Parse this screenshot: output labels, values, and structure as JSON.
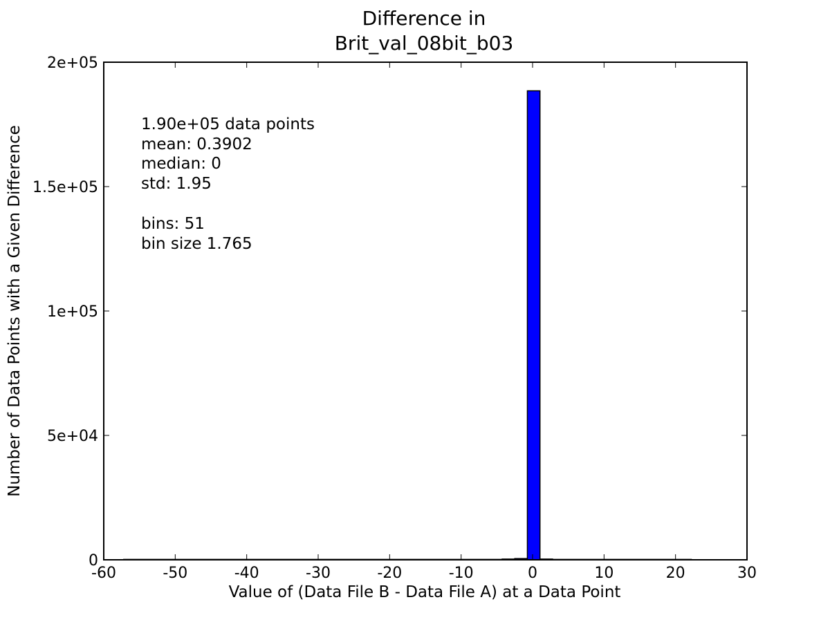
{
  "chart_data": {
    "type": "bar",
    "title": [
      "Difference in",
      "Brit_val_08bit_b03"
    ],
    "xlabel": "Value of (Data File B - Data File A) at a Data Point",
    "ylabel": "Number of Data Points with a Given Difference",
    "xlim": [
      -60,
      30
    ],
    "ylim": [
      0,
      200000
    ],
    "xticks": [
      {
        "value": -60,
        "label": "-60"
      },
      {
        "value": -50,
        "label": "-50"
      },
      {
        "value": -40,
        "label": "-40"
      },
      {
        "value": -30,
        "label": "-30"
      },
      {
        "value": -20,
        "label": "-20"
      },
      {
        "value": -10,
        "label": "-10"
      },
      {
        "value": 0,
        "label": "0"
      },
      {
        "value": 10,
        "label": "10"
      },
      {
        "value": 20,
        "label": "20"
      },
      {
        "value": 30,
        "label": "30"
      }
    ],
    "yticks": [
      {
        "value": 0,
        "label": "0"
      },
      {
        "value": 50000,
        "label": "5e+04"
      },
      {
        "value": 100000,
        "label": "1e+05"
      },
      {
        "value": 150000,
        "label": "1.5e+05"
      },
      {
        "value": 200000,
        "label": "2e+05"
      }
    ],
    "bar_color": "#0000ff",
    "edge_color": "#000000",
    "bins": [
      {
        "x0": -57.21,
        "x1": -4.26,
        "count": 0
      },
      {
        "x0": -4.26,
        "x1": -2.495,
        "count": 300
      },
      {
        "x0": -2.495,
        "x1": -0.73,
        "count": 500
      },
      {
        "x0": -0.73,
        "x1": 1.035,
        "count": 188500
      },
      {
        "x0": 1.035,
        "x1": 2.8,
        "count": 300
      },
      {
        "x0": 2.8,
        "x1": 22.215,
        "count": 0
      }
    ],
    "annotation": [
      "1.90e+05 data points",
      "mean: 0.3902",
      "median: 0",
      "std: 1.95",
      "",
      "bins: 51",
      "bin size 1.765"
    ]
  }
}
